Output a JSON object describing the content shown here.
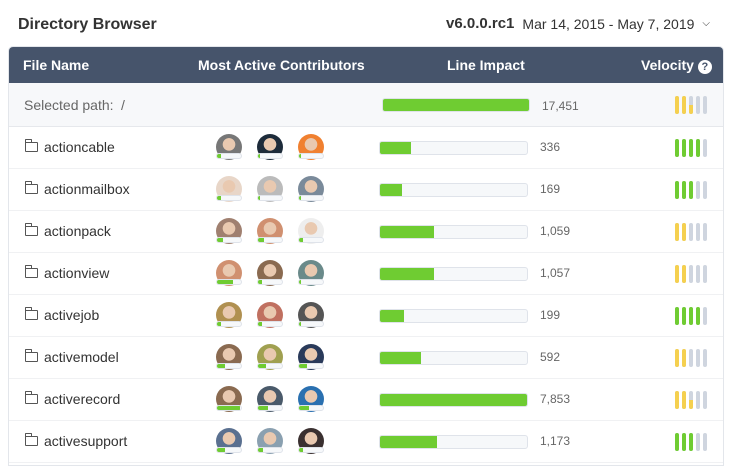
{
  "title": "Directory Browser",
  "version": "v6.0.0.rc1",
  "date_range": "Mar 14, 2015 - May 7, 2019",
  "columns": {
    "file": "File Name",
    "contributors": "Most Active Contributors",
    "impact": "Line Impact",
    "velocity": "Velocity"
  },
  "colors": {
    "header": "#46546b",
    "impact": "#6fcc32",
    "velocity_green": "#6fcc32",
    "velocity_yellow": "#f5d04f",
    "velocity_empty": "#cfd5df"
  },
  "selected": {
    "label": "Selected path:",
    "path": "/",
    "impact": "17,451",
    "impact_fraction": 1.0,
    "velocity": 2.5,
    "velocity_color": "yellow"
  },
  "rows": [
    {
      "name": "actioncable",
      "impact": "336",
      "impact_fraction": 0.21,
      "velocity": 4,
      "velocity_color": "green",
      "avatars": [
        {
          "color": "#777",
          "share": 0.15
        },
        {
          "color": "#1d2b3a",
          "share": 0.1
        },
        {
          "color": "#f08030",
          "share": 0.1
        }
      ]
    },
    {
      "name": "actionmailbox",
      "impact": "169",
      "impact_fraction": 0.15,
      "velocity": 3,
      "velocity_color": "green",
      "avatars": [
        {
          "color": "#e8d6c8",
          "share": 0.15
        },
        {
          "color": "#bbb",
          "share": 0.1
        },
        {
          "color": "#7a8a9a",
          "share": 0.1
        }
      ]
    },
    {
      "name": "actionpack",
      "impact": "1,059",
      "impact_fraction": 0.37,
      "velocity": 2,
      "velocity_color": "yellow",
      "avatars": [
        {
          "color": "#a08070",
          "share": 0.25
        },
        {
          "color": "#d09070",
          "share": 0.25
        },
        {
          "color": "#eee",
          "share": 0.15
        }
      ]
    },
    {
      "name": "actionview",
      "impact": "1,057",
      "impact_fraction": 0.37,
      "velocity": 2,
      "velocity_color": "yellow",
      "avatars": [
        {
          "color": "#d09070",
          "share": 0.65
        },
        {
          "color": "#8a6a50",
          "share": 0.15
        },
        {
          "color": "#6a8a8a",
          "share": 0.1
        }
      ]
    },
    {
      "name": "activejob",
      "impact": "199",
      "impact_fraction": 0.16,
      "velocity": 4,
      "velocity_color": "green",
      "avatars": [
        {
          "color": "#b09050",
          "share": 0.15
        },
        {
          "color": "#c07060",
          "share": 0.15
        },
        {
          "color": "#555",
          "share": 0.1
        }
      ]
    },
    {
      "name": "activemodel",
      "impact": "592",
      "impact_fraction": 0.28,
      "velocity": 2,
      "velocity_color": "yellow",
      "avatars": [
        {
          "color": "#8a6a50",
          "share": 0.35
        },
        {
          "color": "#a0a050",
          "share": 0.35
        },
        {
          "color": "#2a3a5a",
          "share": 0.35
        }
      ]
    },
    {
      "name": "activerecord",
      "impact": "7,853",
      "impact_fraction": 1.0,
      "velocity": 2.5,
      "velocity_color": "yellow",
      "avatars": [
        {
          "color": "#8a6a50",
          "share": 0.95
        },
        {
          "color": "#4a5a6a",
          "share": 0.4
        },
        {
          "color": "#2a70b0",
          "share": 0.4
        }
      ]
    },
    {
      "name": "activesupport",
      "impact": "1,173",
      "impact_fraction": 0.39,
      "velocity": 3,
      "velocity_color": "green",
      "avatars": [
        {
          "color": "#5a7090",
          "share": 0.35
        },
        {
          "color": "#8aa0b0",
          "share": 0.2
        },
        {
          "color": "#3a3030",
          "share": 0.15
        }
      ]
    }
  ]
}
